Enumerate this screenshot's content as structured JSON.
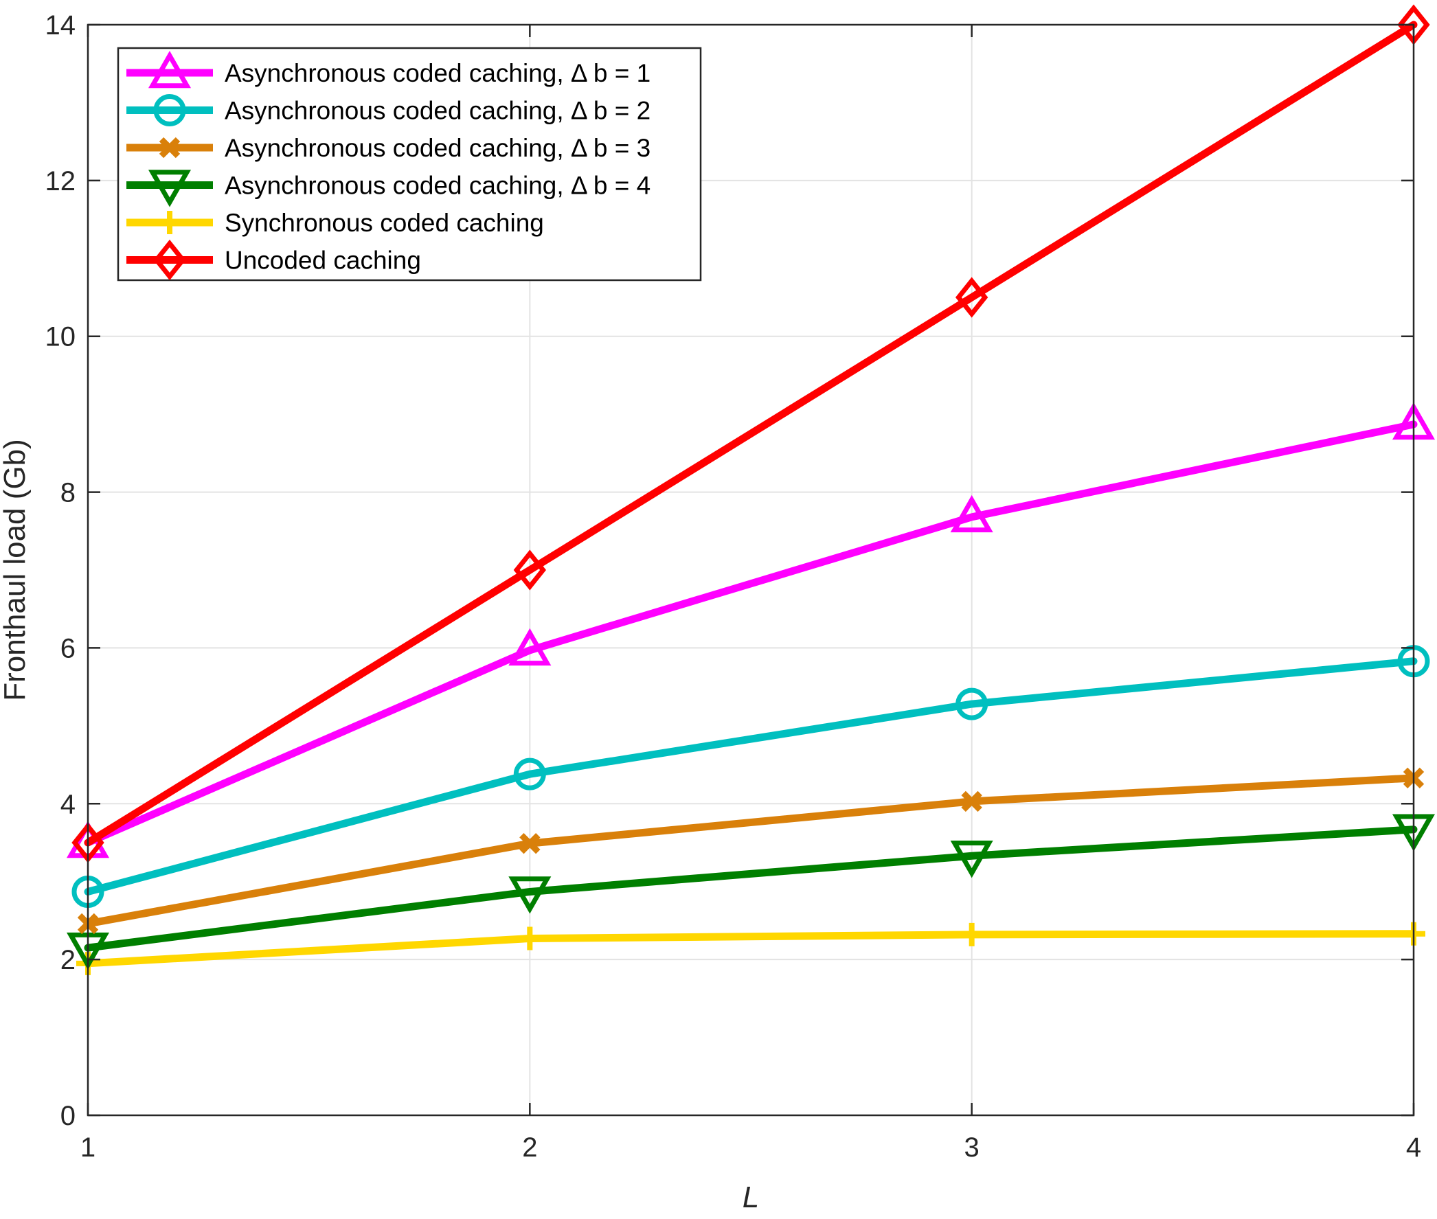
{
  "chart_data": {
    "type": "line",
    "title": "",
    "xlabel": "L",
    "ylabel": "Fronthaul load (Gb)",
    "x": [
      1,
      2,
      3,
      4
    ],
    "xlim": [
      1,
      4
    ],
    "ylim": [
      0,
      14
    ],
    "xticks": [
      1,
      2,
      3,
      4
    ],
    "yticks": [
      0,
      2,
      4,
      6,
      8,
      10,
      12,
      14
    ],
    "grid": true,
    "legend_position": "top-left",
    "series": [
      {
        "name": "Asynchronous coded caching, Δ b = 1",
        "values": [
          3.5,
          5.97,
          7.68,
          8.87
        ],
        "color": "#FF00FF",
        "marker": "triangle-up"
      },
      {
        "name": "Asynchronous coded caching, Δ b = 2",
        "values": [
          2.87,
          4.38,
          5.28,
          5.83
        ],
        "color": "#00BFBF",
        "marker": "circle"
      },
      {
        "name": "Asynchronous coded caching, Δ b = 3",
        "values": [
          2.46,
          3.49,
          4.03,
          4.33
        ],
        "color": "#D9800A",
        "marker": "x"
      },
      {
        "name": "Asynchronous coded caching, Δ b = 4",
        "values": [
          2.15,
          2.87,
          3.33,
          3.67
        ],
        "color": "#007F00",
        "marker": "triangle-down"
      },
      {
        "name": "Synchronous coded caching",
        "values": [
          1.95,
          2.27,
          2.32,
          2.33
        ],
        "color": "#FFD700",
        "marker": "plus"
      },
      {
        "name": "Uncoded caching",
        "values": [
          3.5,
          7.0,
          10.5,
          14.0
        ],
        "color": "#FF0000",
        "marker": "diamond"
      }
    ]
  }
}
